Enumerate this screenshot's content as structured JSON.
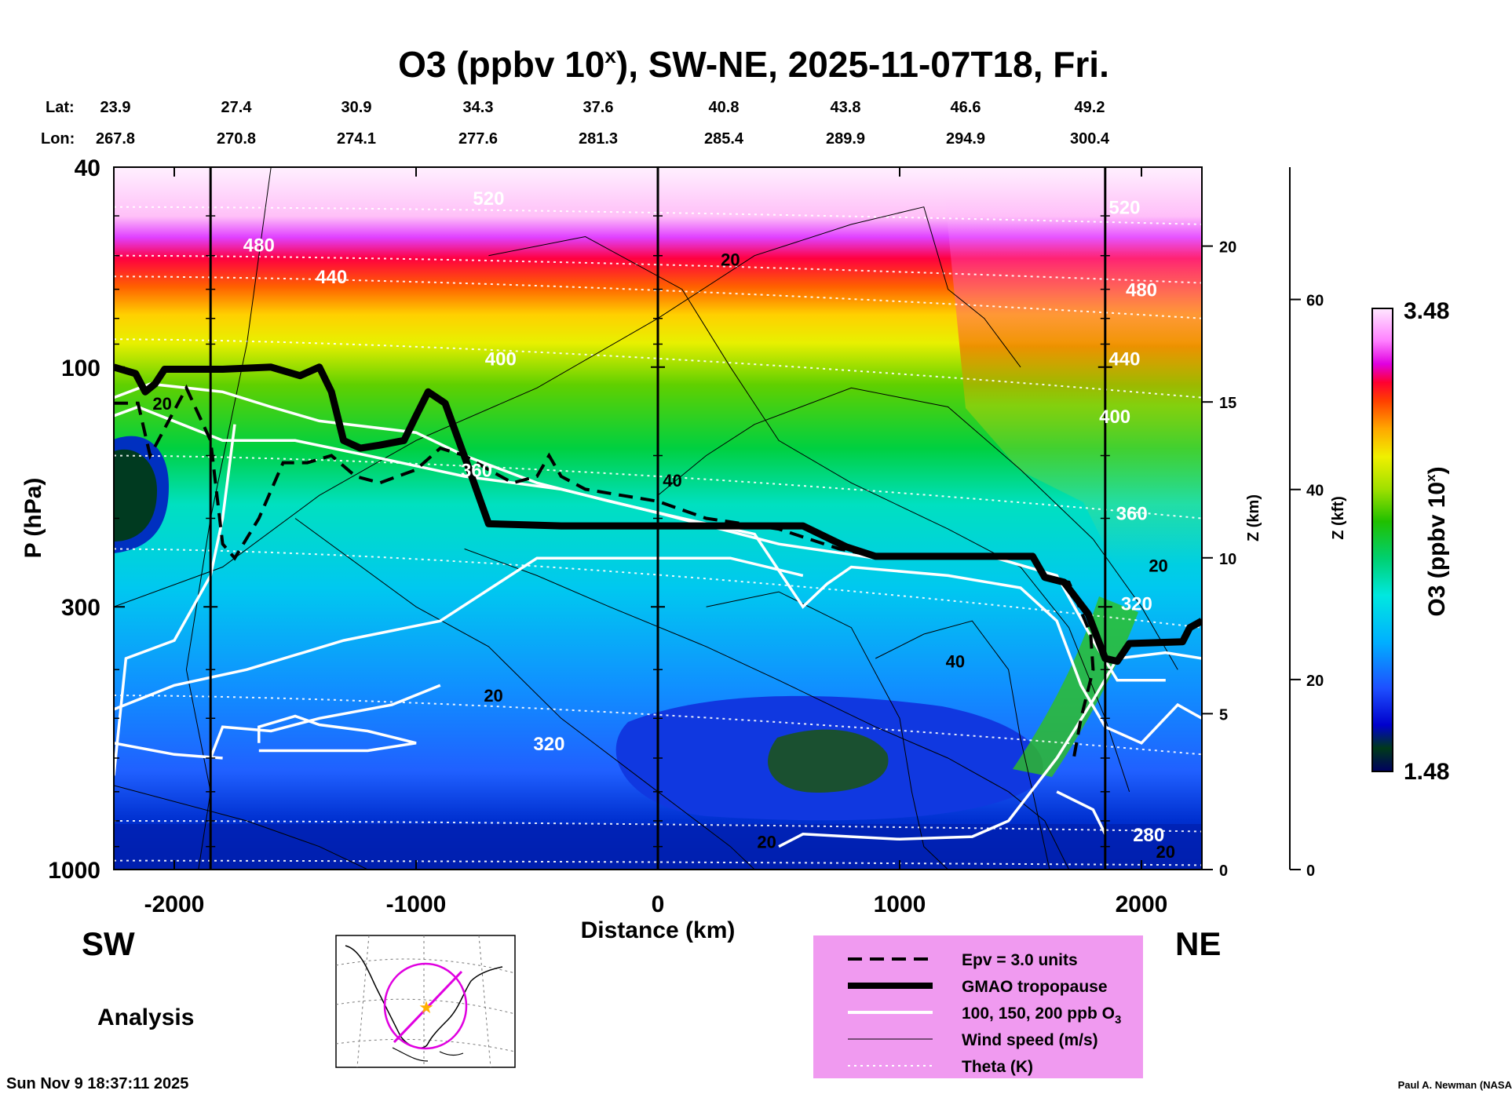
{
  "title": "O3 (ppbv 10",
  "title_sup": "x",
  "title_rest": "), SW-NE, 2025-11-07T18, Fri.",
  "latlon": {
    "lat_label": "Lat:",
    "lon_label": "Lon:",
    "lat": [
      "23.9",
      "27.4",
      "30.9",
      "34.3",
      "37.6",
      "40.8",
      "43.8",
      "46.6",
      "49.2"
    ],
    "lon": [
      "267.8",
      "270.8",
      "274.1",
      "277.6",
      "281.3",
      "285.4",
      "289.9",
      "294.9",
      "300.4"
    ]
  },
  "left_labels": {
    "sw": "SW",
    "analysis": "Analysis",
    "ne": "NE"
  },
  "timestamp": "Sun Nov  9 18:37:11 2025",
  "credit": "Paul A. Newman (NASA",
  "colorbar": {
    "max": "3.48",
    "min": "1.48",
    "label": "O3 (ppbv 10",
    "label_sup": "x",
    "label_end": ")"
  },
  "legend": [
    {
      "style": "dashed",
      "text": "Epv = 3.0 units"
    },
    {
      "style": "thick",
      "text": "GMAO tropopause"
    },
    {
      "style": "white",
      "text": "100, 150, 200 ppb O",
      "sub": "3"
    },
    {
      "style": "thin",
      "text": "Wind speed (m/s)"
    },
    {
      "style": "dotted",
      "text": "Theta (K)"
    }
  ],
  "chart_data": {
    "type": "heatmap",
    "title": "O3 (ppbv 10^x), SW-NE, 2025-11-07T18, Fri.",
    "xlabel": "Distance (km)",
    "ylabel": "P (hPa)",
    "ylabel_right1": "Z (km)",
    "ylabel_right2": "Z (kft)",
    "xlim": [
      -2250,
      2250
    ],
    "ylim": [
      1000,
      40
    ],
    "y_scale": "log",
    "x_ticks": [
      -2000,
      -1000,
      0,
      1000,
      2000
    ],
    "y_ticks": [
      40,
      100,
      300,
      1000
    ],
    "z_km_ticks": [
      0,
      5,
      10,
      15,
      20
    ],
    "z_kft_ticks": [
      0,
      20,
      40,
      60
    ],
    "colorbar_range": [
      1.48,
      3.48
    ],
    "colorbar_label": "O3 (ppbv 10^x)",
    "vertical_lines_km": [
      -1850,
      0,
      1850
    ],
    "theta_labels": [
      {
        "text": "520",
        "x": -700,
        "p": 46
      },
      {
        "text": "480",
        "x": -1650,
        "p": 57
      },
      {
        "text": "440",
        "x": -1350,
        "p": 66
      },
      {
        "text": "400",
        "x": -650,
        "p": 96
      },
      {
        "text": "360",
        "x": -750,
        "p": 160
      },
      {
        "text": "320",
        "x": -450,
        "p": 560
      },
      {
        "text": "520",
        "x": 1930,
        "p": 48
      },
      {
        "text": "480",
        "x": 2000,
        "p": 70
      },
      {
        "text": "440",
        "x": 1930,
        "p": 96
      },
      {
        "text": "400",
        "x": 1890,
        "p": 125
      },
      {
        "text": "360",
        "x": 1960,
        "p": 195
      },
      {
        "text": "320",
        "x": 1980,
        "p": 295
      },
      {
        "text": "280",
        "x": 2030,
        "p": 850
      }
    ],
    "wind_labels": [
      {
        "text": "20",
        "x": -2050,
        "p": 118
      },
      {
        "text": "20",
        "x": 300,
        "p": 61
      },
      {
        "text": "40",
        "x": 60,
        "p": 168
      },
      {
        "text": "20",
        "x": 2070,
        "p": 248
      },
      {
        "text": "40",
        "x": 1230,
        "p": 385
      },
      {
        "text": "20",
        "x": -680,
        "p": 450
      },
      {
        "text": "20",
        "x": 450,
        "p": 880
      },
      {
        "text": "20",
        "x": 2100,
        "p": 920
      }
    ],
    "tropopause": [
      [
        -2250,
        100
      ],
      [
        -2160,
        103
      ],
      [
        -2120,
        112
      ],
      [
        -2080,
        108
      ],
      [
        -2040,
        101
      ],
      [
        -1800,
        101
      ],
      [
        -1600,
        100
      ],
      [
        -1480,
        104
      ],
      [
        -1400,
        100
      ],
      [
        -1350,
        112
      ],
      [
        -1300,
        140
      ],
      [
        -1230,
        145
      ],
      [
        -1150,
        143
      ],
      [
        -1050,
        140
      ],
      [
        -1000,
        125
      ],
      [
        -950,
        112
      ],
      [
        -880,
        118
      ],
      [
        -780,
        160
      ],
      [
        -700,
        205
      ],
      [
        -400,
        207
      ],
      [
        0,
        207
      ],
      [
        600,
        207
      ],
      [
        780,
        228
      ],
      [
        900,
        238
      ],
      [
        1550,
        238
      ],
      [
        1600,
        262
      ],
      [
        1680,
        268
      ],
      [
        1780,
        310
      ],
      [
        1850,
        380
      ],
      [
        1900,
        385
      ],
      [
        1950,
        355
      ],
      [
        2170,
        352
      ],
      [
        2200,
        330
      ],
      [
        2250,
        320
      ]
    ],
    "epv": [
      [
        -2250,
        118
      ],
      [
        -2150,
        118
      ],
      [
        -2100,
        150
      ],
      [
        -1950,
        110
      ],
      [
        -1850,
        140
      ],
      [
        -1800,
        225
      ],
      [
        -1750,
        240
      ],
      [
        -1650,
        200
      ],
      [
        -1550,
        155
      ],
      [
        -1450,
        155
      ],
      [
        -1350,
        150
      ],
      [
        -1250,
        165
      ],
      [
        -1150,
        170
      ],
      [
        -1000,
        160
      ],
      [
        -900,
        145
      ],
      [
        -800,
        150
      ],
      [
        -700,
        160
      ],
      [
        -600,
        170
      ],
      [
        -500,
        165
      ],
      [
        -450,
        150
      ],
      [
        -400,
        165
      ],
      [
        -300,
        175
      ],
      [
        -150,
        180
      ],
      [
        0,
        185
      ],
      [
        200,
        200
      ],
      [
        500,
        210
      ],
      [
        750,
        230
      ],
      [
        900,
        238
      ],
      [
        1550,
        238
      ],
      [
        1600,
        262
      ],
      [
        1700,
        268
      ],
      [
        1790,
        340
      ],
      [
        1800,
        400
      ],
      [
        1750,
        500
      ],
      [
        1720,
        600
      ]
    ]
  }
}
